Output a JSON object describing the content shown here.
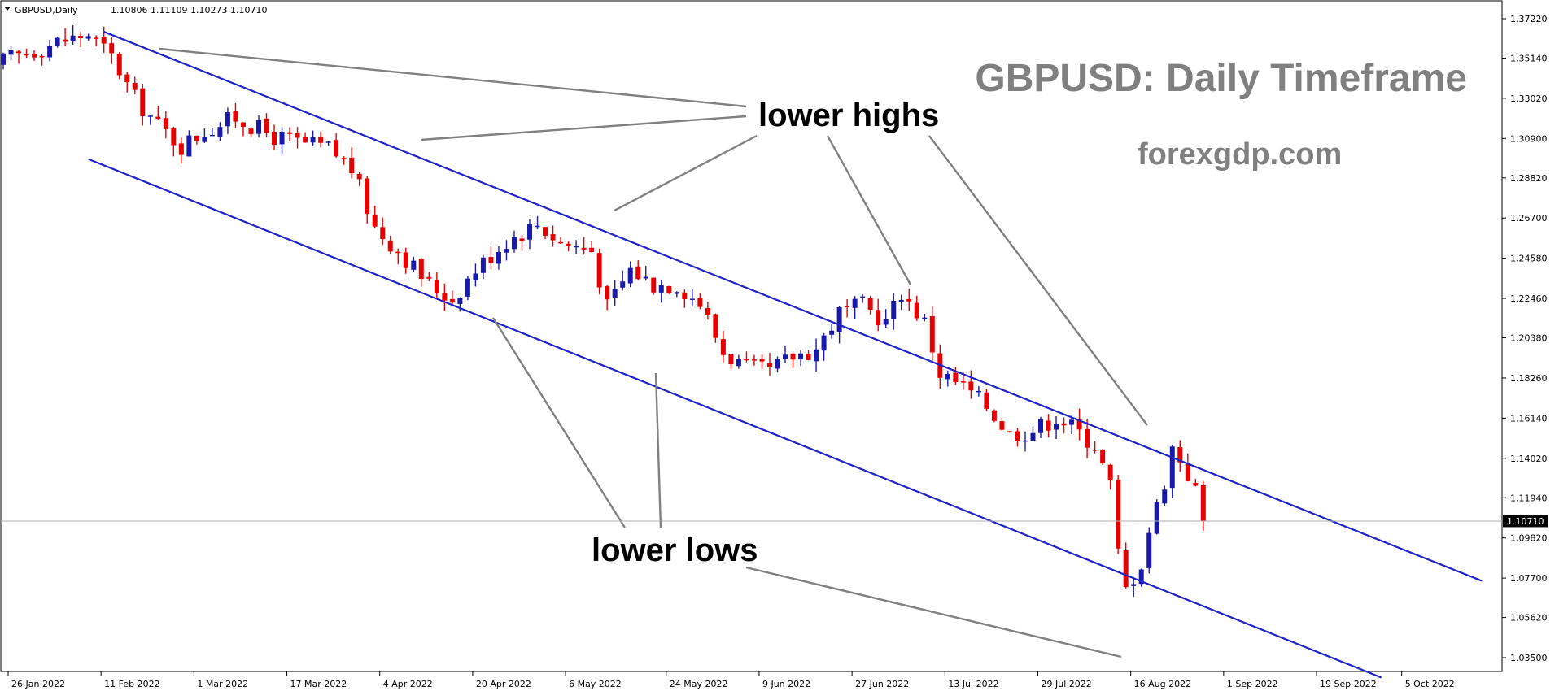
{
  "header": {
    "symbol": "GBPUSD,Daily",
    "ohlc": "1.10806 1.11109 1.10273 1.10710"
  },
  "watermark": {
    "title": "GBPUSD: Daily Timeframe",
    "site": "forexgdp.com"
  },
  "annotations": {
    "highs_label": "lower highs",
    "lows_label": "lower lows"
  },
  "colors": {
    "bull": "#1a1aaa",
    "bear": "#e60000",
    "channel": "#1f22c4",
    "pointer": "#808080",
    "price_tag_bg": "#000000"
  },
  "current_price": {
    "value": 1.1071,
    "label": "1.10710"
  },
  "chart_data": {
    "type": "candlestick",
    "ylim": [
      1.025,
      1.381
    ],
    "y_ticks": [
      "1.37220",
      "1.35140",
      "1.33020",
      "1.30900",
      "1.28820",
      "1.26700",
      "1.24580",
      "1.22460",
      "1.20380",
      "1.18260",
      "1.16140",
      "1.14020",
      "1.11940",
      "1.09820",
      "1.07700",
      "1.05620",
      "1.03500"
    ],
    "x_ticks": [
      "26 Jan 2022",
      "11 Feb 2022",
      "1 Mar 2022",
      "17 Mar 2022",
      "4 Apr 2022",
      "20 Apr 2022",
      "6 May 2022",
      "24 May 2022",
      "9 Jun 2022",
      "27 Jun 2022",
      "13 Jul 2022",
      "29 Jul 2022",
      "16 Aug 2022",
      "1 Sep 2022",
      "19 Sep 2022",
      "5 Oct 2022"
    ],
    "close_path": [
      [
        0,
        1.35
      ],
      [
        7,
        1.36
      ],
      [
        11,
        1.364
      ],
      [
        14,
        1.352
      ],
      [
        17,
        1.33
      ],
      [
        20,
        1.316
      ],
      [
        23,
        1.305
      ],
      [
        26,
        1.313
      ],
      [
        30,
        1.32
      ],
      [
        35,
        1.31
      ],
      [
        39,
        1.306
      ],
      [
        42,
        1.304
      ],
      [
        45,
        1.293
      ],
      [
        48,
        1.262
      ],
      [
        51,
        1.25
      ],
      [
        55,
        1.232
      ],
      [
        58,
        1.224
      ],
      [
        61,
        1.24
      ],
      [
        65,
        1.255
      ],
      [
        69,
        1.264
      ],
      [
        72,
        1.254
      ],
      [
        76,
        1.25
      ],
      [
        78,
        1.22
      ],
      [
        81,
        1.24
      ],
      [
        84,
        1.232
      ],
      [
        87,
        1.232
      ],
      [
        90,
        1.222
      ],
      [
        93,
        1.196
      ],
      [
        96,
        1.188
      ],
      [
        99,
        1.186
      ],
      [
        102,
        1.194
      ],
      [
        105,
        1.198
      ],
      [
        108,
        1.217
      ],
      [
        111,
        1.221
      ],
      [
        114,
        1.212
      ],
      [
        116,
        1.228
      ],
      [
        119,
        1.212
      ],
      [
        121,
        1.185
      ],
      [
        124,
        1.178
      ],
      [
        127,
        1.168
      ],
      [
        130,
        1.153
      ],
      [
        133,
        1.155
      ],
      [
        136,
        1.162
      ],
      [
        138,
        1.157
      ],
      [
        141,
        1.147
      ],
      [
        143,
        1.126
      ],
      [
        144,
        1.09
      ],
      [
        145,
        1.071
      ],
      [
        147,
        1.085
      ],
      [
        148,
        1.102
      ],
      [
        150,
        1.128
      ],
      [
        151,
        1.146
      ],
      [
        152,
        1.14
      ],
      [
        154,
        1.123
      ],
      [
        155,
        1.1071
      ]
    ],
    "candle_count": 156,
    "channel_upper": [
      [
        13,
        1.3653
      ],
      [
        191,
        1.0755
      ]
    ],
    "channel_lower": [
      [
        11,
        1.2981
      ],
      [
        178,
        1.0245
      ]
    ],
    "current_price": 1.1071
  }
}
